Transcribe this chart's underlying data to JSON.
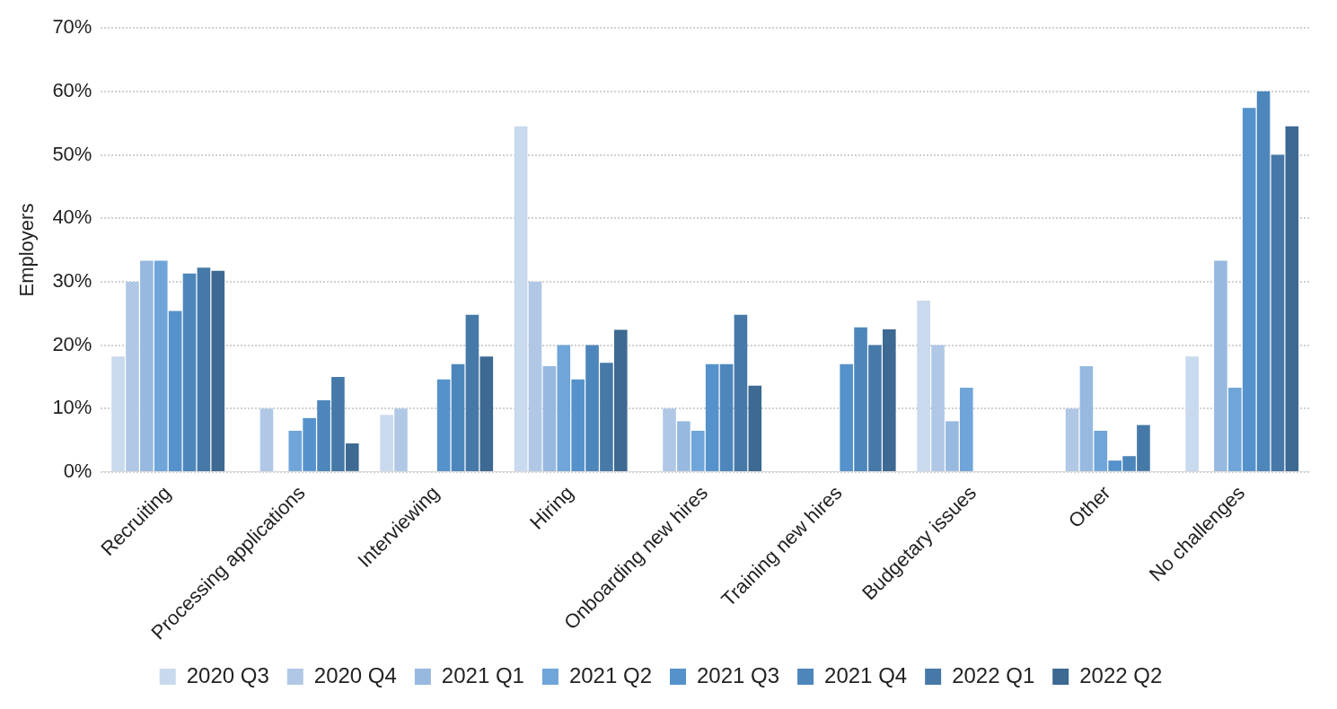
{
  "chart_data": {
    "type": "bar",
    "ylabel": "Employers",
    "categories": [
      "Recruiting",
      "Processing applications",
      "Interviewing",
      "Hiring",
      "Onboarding new hires",
      "Training new hires",
      "Budgetary issues",
      "Other",
      "No challenges"
    ],
    "series": [
      {
        "name": "2020 Q3",
        "color": "#c9d9ee",
        "values": [
          18.2,
          null,
          9,
          54.5,
          null,
          null,
          27,
          null,
          18.2
        ]
      },
      {
        "name": "2020 Q4",
        "color": "#b0c8e6",
        "values": [
          30,
          10,
          10,
          30,
          10,
          null,
          20,
          10,
          null
        ]
      },
      {
        "name": "2021 Q1",
        "color": "#97b9e0",
        "values": [
          33.3,
          null,
          null,
          16.7,
          8,
          null,
          8,
          16.7,
          33.3
        ]
      },
      {
        "name": "2021 Q2",
        "color": "#70a5d9",
        "values": [
          33.3,
          6.5,
          null,
          20,
          6.5,
          null,
          13.3,
          6.5,
          13.3
        ]
      },
      {
        "name": "2021 Q3",
        "color": "#5592cb",
        "values": [
          25.4,
          8.5,
          14.6,
          14.6,
          17,
          17,
          null,
          1.8,
          57.4
        ]
      },
      {
        "name": "2021 Q4",
        "color": "#4d86bb",
        "values": [
          31.3,
          11.3,
          17,
          20,
          17,
          22.8,
          null,
          2.5,
          60
        ]
      },
      {
        "name": "2022 Q1",
        "color": "#4679a8",
        "values": [
          32.2,
          15,
          24.8,
          17.2,
          24.8,
          20,
          null,
          7.4,
          50
        ]
      },
      {
        "name": "2022 Q2",
        "color": "#3d6992",
        "values": [
          31.7,
          4.5,
          18.2,
          22.4,
          13.6,
          22.5,
          null,
          null,
          54.5
        ]
      }
    ],
    "ylim": [
      0,
      70
    ],
    "yticks": [
      {
        "value": 0,
        "label": "0%"
      },
      {
        "value": 10,
        "label": "10%"
      },
      {
        "value": 20,
        "label": "20%"
      },
      {
        "value": 30,
        "label": "30%"
      },
      {
        "value": 40,
        "label": "40%"
      },
      {
        "value": 50,
        "label": "50%"
      },
      {
        "value": 60,
        "label": "60%"
      },
      {
        "value": 70,
        "label": "70%"
      }
    ],
    "grid": "y",
    "legend": "bottom"
  }
}
